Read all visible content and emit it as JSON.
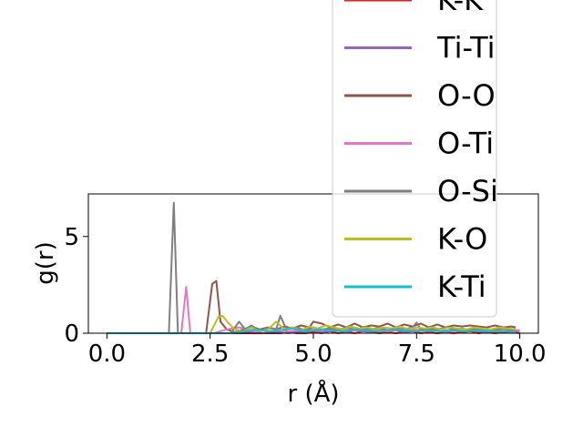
{
  "chart_data": {
    "type": "line",
    "xlabel": "r (Å)",
    "ylabel": "g(r)",
    "xlim": [
      -0.45,
      10.45
    ],
    "ylim": [
      0,
      7.2
    ],
    "xticks": [
      0.0,
      2.5,
      5.0,
      7.5,
      10.0
    ],
    "xtick_labels": [
      "0.0",
      "2.5",
      "5.0",
      "7.5",
      "10.0"
    ],
    "yticks": [
      0,
      5
    ],
    "ytick_labels": [
      "0",
      "5"
    ],
    "grid": false,
    "legend_placement": "upper-right, partially above the axes",
    "series": [
      {
        "name": "K-K",
        "color": "#d62728",
        "x": [
          0,
          3.0,
          3.2,
          3.4,
          3.6,
          3.8,
          4.0,
          4.2,
          4.4,
          4.6,
          4.8,
          5.0,
          5.2,
          5.4,
          5.6,
          5.8,
          6.0,
          6.2,
          6.4,
          6.6,
          6.8,
          7.0,
          7.2,
          7.4,
          7.6,
          7.8,
          8.0,
          8.2,
          8.4,
          8.6,
          8.8,
          9.0,
          9.2,
          9.4,
          9.6,
          9.8,
          10.0
        ],
        "y": [
          0,
          0,
          0,
          0,
          0,
          0,
          0,
          0,
          0.05,
          0,
          0,
          0.05,
          0,
          0.1,
          0,
          0.05,
          0,
          0.1,
          0.05,
          0,
          0.05,
          0,
          0.05,
          0.1,
          0,
          0.05,
          0,
          0.05,
          0,
          0.05,
          0.1,
          0,
          0.05,
          0,
          0.05,
          0.05,
          0
        ]
      },
      {
        "name": "Ti-Ti",
        "color": "#9467bd",
        "x": [
          0,
          3.0,
          3.2,
          3.4,
          3.6,
          3.8,
          4.0,
          4.2,
          4.4,
          4.6,
          4.8,
          5.0,
          5.2,
          5.4,
          5.6,
          5.8,
          6.0,
          6.2,
          6.4,
          6.6,
          6.8,
          7.0,
          7.2,
          7.4,
          7.6,
          7.8,
          8.0,
          8.2,
          8.4,
          8.6,
          8.8,
          9.0,
          9.2,
          9.4,
          9.6,
          9.8,
          10.0
        ],
        "y": [
          0,
          0,
          0.05,
          0.1,
          0.05,
          0,
          0.1,
          0.05,
          0,
          0.1,
          0.05,
          0.15,
          0.05,
          0.1,
          0.2,
          0.05,
          0.15,
          0.1,
          0.05,
          0.2,
          0.1,
          0.15,
          0.05,
          0.1,
          0.2,
          0.1,
          0.15,
          0.05,
          0.15,
          0.1,
          0.2,
          0.1,
          0.05,
          0.15,
          0.1,
          0.15,
          0.1
        ]
      },
      {
        "name": "O-O",
        "color": "#8c564b",
        "x": [
          0,
          2.4,
          2.55,
          2.65,
          2.75,
          2.9,
          3.1,
          3.3,
          3.5,
          3.7,
          3.9,
          4.1,
          4.3,
          4.5,
          4.7,
          4.9,
          5.0,
          5.2,
          5.4,
          5.6,
          5.8,
          6.0,
          6.2,
          6.4,
          6.6,
          6.8,
          7.0,
          7.2,
          7.4,
          7.6,
          7.8,
          8.0,
          8.2,
          8.4,
          8.6,
          8.8,
          9.0,
          9.2,
          9.4,
          9.6,
          9.8,
          9.9
        ],
        "y": [
          0,
          0,
          2.55,
          2.7,
          0.6,
          0.2,
          0.05,
          0.2,
          0.35,
          0.2,
          0.3,
          0.2,
          0.35,
          0.25,
          0.4,
          0.3,
          0.6,
          0.5,
          0.3,
          0.45,
          0.3,
          0.5,
          0.3,
          0.4,
          0.35,
          0.5,
          0.3,
          0.45,
          0.35,
          0.5,
          0.3,
          0.45,
          0.3,
          0.4,
          0.35,
          0.4,
          0.35,
          0.3,
          0.4,
          0.3,
          0.35,
          0.3
        ]
      },
      {
        "name": "O-Ti",
        "color": "#e377c2",
        "x": [
          0,
          1.8,
          1.92,
          2.02,
          2.2,
          2.6,
          2.9,
          3.2,
          3.6,
          4.0,
          4.4,
          4.8,
          5.2,
          5.6,
          6.0,
          6.4,
          6.8,
          7.2,
          7.6,
          8.0,
          8.4,
          8.8,
          9.2,
          9.6,
          10.0
        ],
        "y": [
          0,
          0,
          2.4,
          0,
          0,
          0,
          0.2,
          0.3,
          0.1,
          0.25,
          0.1,
          0.2,
          0.15,
          0.25,
          0.15,
          0.2,
          0.1,
          0.25,
          0.15,
          0.2,
          0.1,
          0.2,
          0.15,
          0.2,
          0.15
        ]
      },
      {
        "name": "O-Si",
        "color": "#7f7f7f",
        "x": [
          0,
          1.5,
          1.62,
          1.72,
          2.0,
          2.5,
          3.0,
          3.2,
          3.35,
          3.5,
          3.7,
          3.9,
          4.1,
          4.2,
          4.35,
          4.6,
          4.8,
          5.0,
          5.2,
          5.4,
          5.6,
          5.8,
          6.0,
          6.2,
          6.4,
          6.6,
          6.8,
          7.0,
          7.2,
          7.4,
          7.5,
          7.6,
          7.8,
          8.0,
          8.2,
          8.4,
          8.6,
          8.8,
          9.0,
          9.2,
          9.4,
          9.6,
          9.8,
          9.9
        ],
        "y": [
          0,
          0,
          6.75,
          0,
          0,
          0,
          0,
          0.6,
          0.2,
          0.4,
          0.1,
          0.3,
          0.2,
          0.9,
          0.2,
          0.3,
          0.15,
          0.3,
          0.2,
          0.25,
          0.15,
          0.3,
          0.2,
          0.25,
          0.2,
          0.3,
          0.15,
          0.25,
          0.2,
          0.3,
          0.55,
          0.2,
          0.25,
          0.2,
          0.3,
          0.2,
          0.25,
          0.15,
          0.25,
          0.2,
          0.2,
          0.25,
          0.15,
          0.2
        ]
      },
      {
        "name": "K-O",
        "color": "#bcbd22",
        "x": [
          0,
          2.5,
          2.7,
          2.8,
          2.95,
          3.1,
          3.3,
          3.5,
          3.7,
          3.9,
          4.1,
          4.3,
          4.5,
          4.7,
          4.9,
          5.1,
          5.3,
          5.5,
          5.7,
          5.9,
          6.1,
          6.3,
          6.5,
          6.7,
          6.9,
          7.1,
          7.3,
          7.5,
          7.7,
          7.9,
          8.1,
          8.3,
          8.5,
          8.7,
          8.9,
          9.1,
          9.3,
          9.5,
          9.7,
          9.9
        ],
        "y": [
          0,
          0,
          0.85,
          0.9,
          0.5,
          0.2,
          0.1,
          0.3,
          0.1,
          0.2,
          0.6,
          0.2,
          0.3,
          0.15,
          0.35,
          0.25,
          0.4,
          0.3,
          0.2,
          0.35,
          0.25,
          0.3,
          0.2,
          0.3,
          0.25,
          0.35,
          0.2,
          0.3,
          0.25,
          0.3,
          0.2,
          0.3,
          0.25,
          0.2,
          0.3,
          0.25,
          0.2,
          0.3,
          0.25,
          0.2
        ]
      },
      {
        "name": "K-Ti",
        "color": "#17becf",
        "x": [
          0,
          3.0,
          3.3,
          3.6,
          3.9,
          4.2,
          4.5,
          4.8,
          5.1,
          5.4,
          5.7,
          6.0,
          6.3,
          6.6,
          6.9,
          7.2,
          7.5,
          7.8,
          8.1,
          8.4,
          8.7,
          9.0,
          9.3,
          9.6,
          9.9
        ],
        "y": [
          0,
          0,
          0.1,
          0.2,
          0.1,
          0.15,
          0.25,
          0.1,
          0.2,
          0.15,
          0.1,
          0.2,
          0.15,
          0.1,
          0.2,
          0.15,
          0.1,
          0.15,
          0.1,
          0.15,
          0.1,
          0.15,
          0.1,
          0.1,
          0.05
        ]
      }
    ]
  }
}
